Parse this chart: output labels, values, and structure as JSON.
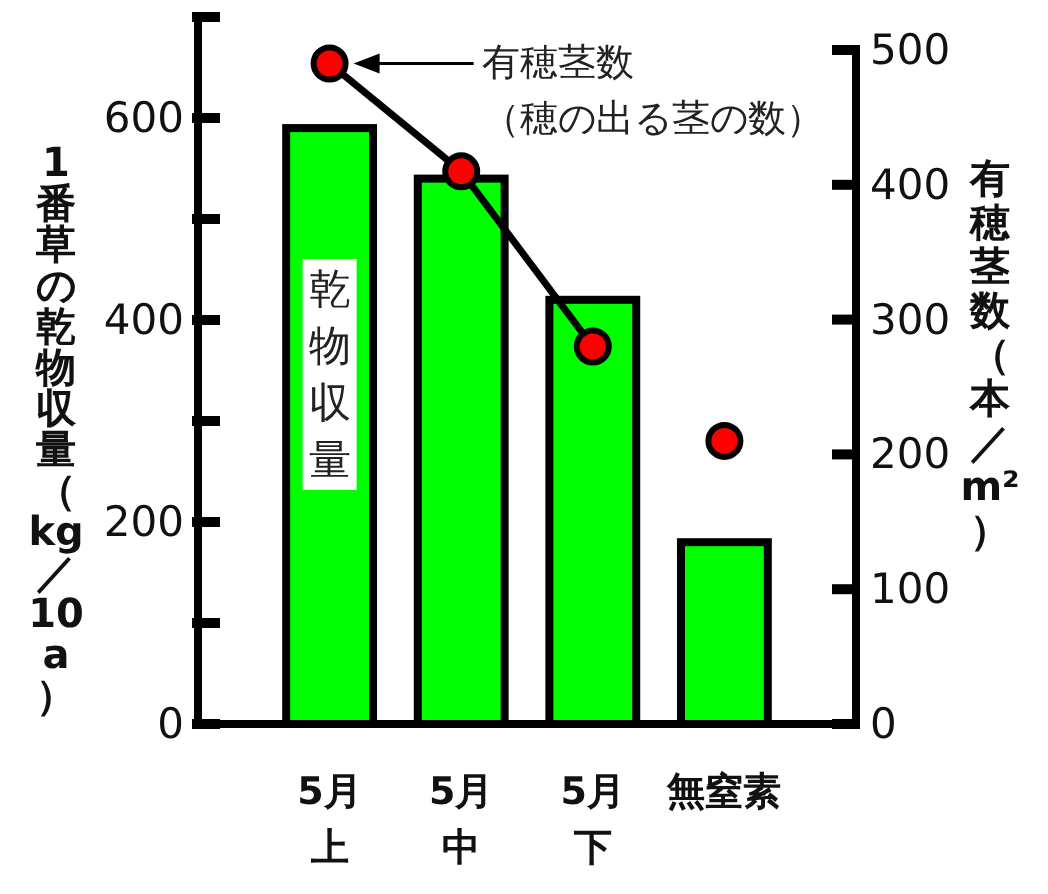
{
  "chart_data": {
    "type": "bar",
    "categories": [
      "5月上",
      "5月中",
      "5月下",
      "無窒素"
    ],
    "ylabel": "1番草の乾物収量（kg／10a）",
    "y2label": "有穂茎数（本／m²）",
    "ylim": [
      0,
      700
    ],
    "yticks": [
      0,
      {
        "value": 100,
        "label": null
      },
      200,
      {
        "value": 300,
        "label": null
      },
      400,
      {
        "value": 500,
        "label": null
      },
      600,
      {
        "value": 700,
        "label": null
      }
    ],
    "y2lim": [
      0,
      500
    ],
    "y2ticks": [
      0,
      100,
      200,
      300,
      400,
      500
    ],
    "annotations": [
      "（穂の出る茎の数）"
    ],
    "series": [
      {
        "name": "乾物収量",
        "color": "#00ff00",
        "values": [
          590,
          540,
          420,
          180
        ]
      },
      {
        "type": "line",
        "axis": "y2",
        "color": "#000000",
        "marker": "none",
        "values": [
          490,
          410,
          280,
          null
        ]
      },
      {
        "name": "有穂茎数",
        "type": "scatter",
        "axis": "y2",
        "color": "#ff0000",
        "marker": "circle",
        "values": [
          490,
          410,
          280,
          210
        ]
      }
    ]
  }
}
